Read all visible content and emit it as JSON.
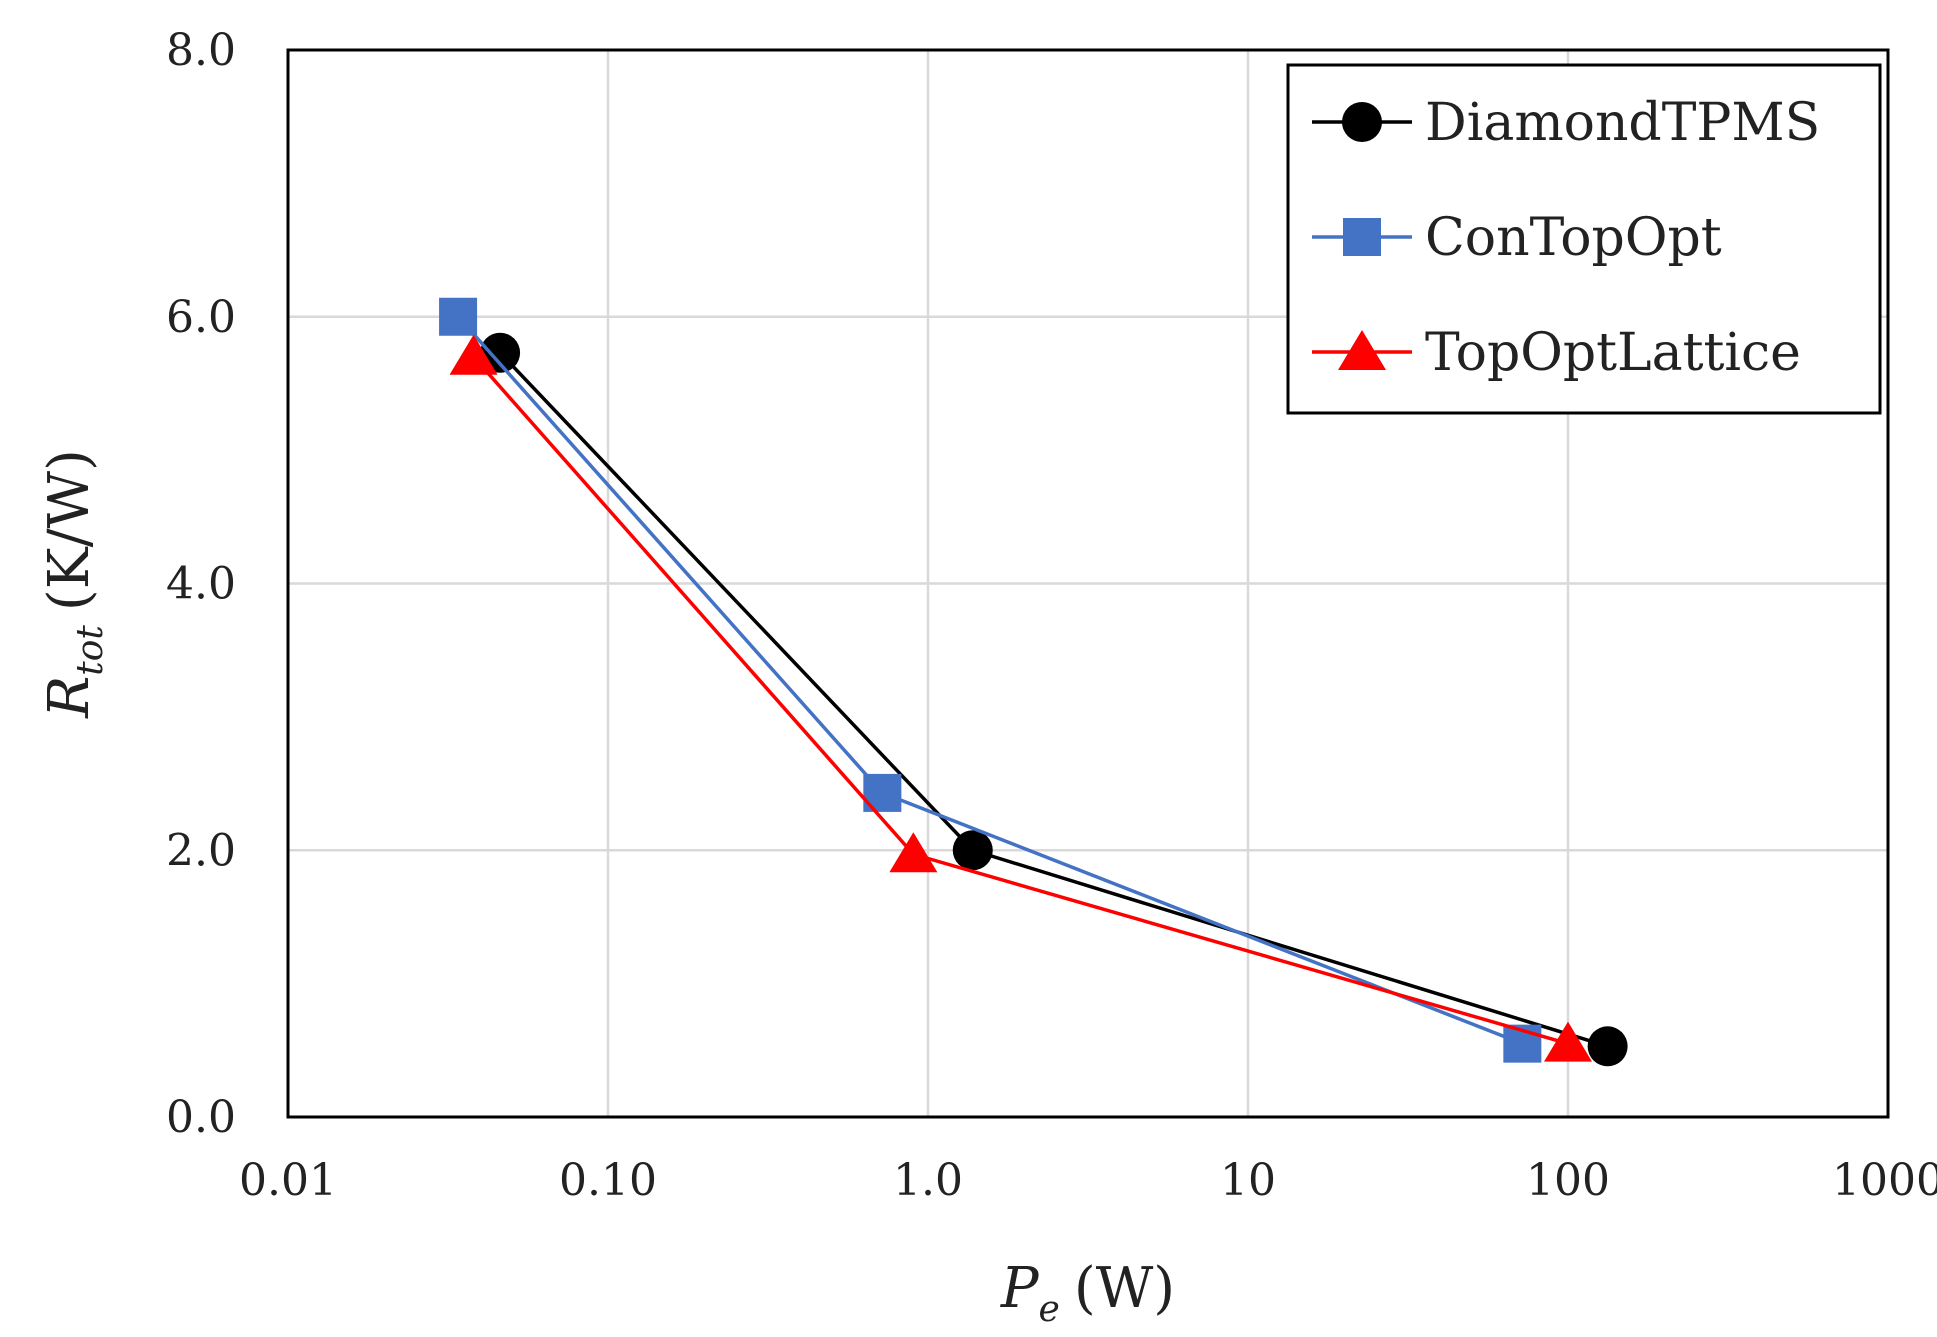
{
  "chart_data": {
    "type": "line",
    "x_scale": "log",
    "xlabel": {
      "symbol": "P",
      "subscript": "e",
      "unit": "(W)"
    },
    "ylabel": {
      "symbol": "R",
      "subscript": "tot",
      "unit": "(K/W)"
    },
    "xlim": [
      0.01,
      1000
    ],
    "ylim": [
      0,
      8
    ],
    "x_ticks": [
      {
        "value": 0.01,
        "label": "0.01"
      },
      {
        "value": 0.1,
        "label": "0.10"
      },
      {
        "value": 1,
        "label": "1.0"
      },
      {
        "value": 10,
        "label": "10"
      },
      {
        "value": 100,
        "label": "100"
      },
      {
        "value": 1000,
        "label": "1000"
      }
    ],
    "y_ticks": [
      {
        "value": 0,
        "label": "0.0"
      },
      {
        "value": 2,
        "label": "2.0"
      },
      {
        "value": 4,
        "label": "4.0"
      },
      {
        "value": 6,
        "label": "6.0"
      },
      {
        "value": 8,
        "label": "8.0"
      }
    ],
    "grid": true,
    "legend_position": "top-right",
    "series": [
      {
        "name": "DiamondTPMS",
        "color": "#000000",
        "marker": "circle",
        "x": [
          0.046,
          1.38,
          133
        ],
        "y": [
          5.73,
          2.0,
          0.53
        ]
      },
      {
        "name": "ConTopOpt",
        "color": "#4472C4",
        "marker": "square",
        "x": [
          0.034,
          0.72,
          72
        ],
        "y": [
          6.0,
          2.43,
          0.55
        ]
      },
      {
        "name": "TopOptLattice",
        "color": "#FF0000",
        "marker": "triangle",
        "x": [
          0.038,
          0.9,
          100
        ],
        "y": [
          5.7,
          1.97,
          0.55
        ]
      }
    ]
  }
}
